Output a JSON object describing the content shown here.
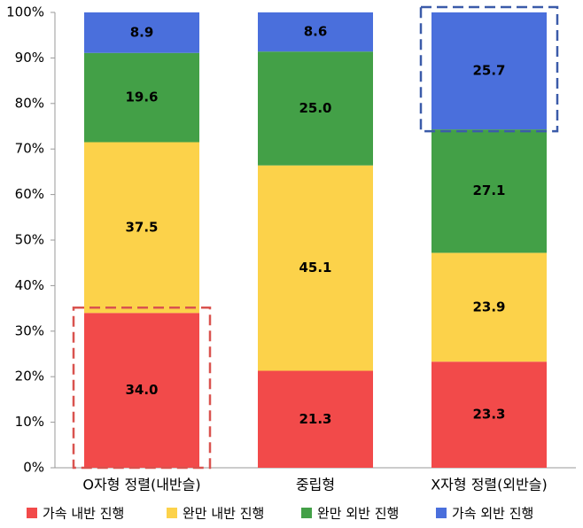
{
  "chart_data": {
    "type": "stacked-bar",
    "categories": [
      "O자형 정렬(내반슬)",
      "중립형",
      "X자형 정렬(외반슬)"
    ],
    "series": [
      {
        "name": "가속 내반 진행",
        "color": "#f24a4a",
        "values": [
          34.0,
          21.3,
          23.3
        ],
        "value_labels": [
          "34.0",
          "21.3",
          "23.3"
        ]
      },
      {
        "name": "완만 내반 진행",
        "color": "#fcd24a",
        "values": [
          37.5,
          45.1,
          23.9
        ],
        "value_labels": [
          "37.5",
          "45.1",
          "23.9"
        ]
      },
      {
        "name": "완만 외반 진행",
        "color": "#43a047",
        "values": [
          19.6,
          25.0,
          27.1
        ],
        "value_labels": [
          "19.6",
          "25.0",
          "27.1"
        ]
      },
      {
        "name": "가속 외반 진행",
        "color": "#4a6fdc",
        "values": [
          8.9,
          8.6,
          25.7
        ],
        "value_labels": [
          "8.9",
          "8.6",
          "25.7"
        ]
      }
    ],
    "ylim": [
      0,
      100
    ],
    "yticks": [
      {
        "value": 0,
        "label": "0%"
      },
      {
        "value": 10,
        "label": "10%"
      },
      {
        "value": 20,
        "label": "20%"
      },
      {
        "value": 30,
        "label": "30%"
      },
      {
        "value": 40,
        "label": "40%"
      },
      {
        "value": 50,
        "label": "50%"
      },
      {
        "value": 60,
        "label": "60%"
      },
      {
        "value": 70,
        "label": "70%"
      },
      {
        "value": 80,
        "label": "80%"
      },
      {
        "value": 90,
        "label": "90%"
      },
      {
        "value": 100,
        "label": "100%"
      }
    ],
    "grid": false,
    "legend": "bottom"
  }
}
